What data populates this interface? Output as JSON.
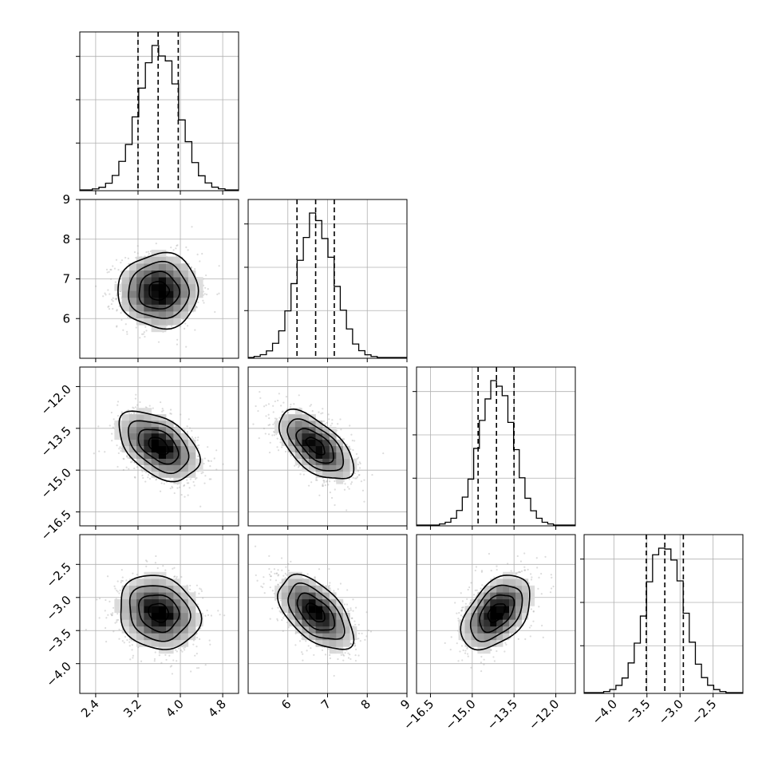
{
  "chart_data": {
    "type": "corner",
    "title": "",
    "parameters": [
      {
        "index": 0,
        "range": [
          2.1,
          5.1
        ],
        "ticks": [
          2.4,
          3.2,
          4.0,
          4.8
        ],
        "tick_labels": [
          "2.4",
          "3.2",
          "4.0",
          "4.8"
        ],
        "mean": 3.59,
        "sd": 0.38,
        "quantiles": [
          3.2,
          3.58,
          3.96
        ]
      },
      {
        "index": 1,
        "range": [
          5.0,
          9.0
        ],
        "ticks": [
          6,
          7,
          8,
          9
        ],
        "tick_labels": [
          "6",
          "7",
          "8",
          "9"
        ],
        "mean": 6.7,
        "sd": 0.47,
        "quantiles": [
          6.23,
          6.7,
          7.17
        ]
      },
      {
        "index": 2,
        "range": [
          -17.0,
          -11.3
        ],
        "ticks": [
          -16.5,
          -15.0,
          -13.5,
          -12.0
        ],
        "tick_labels": [
          "−16.5",
          "−15.0",
          "−13.5",
          "−12.0"
        ],
        "mean": -14.13,
        "sd": 0.62,
        "quantiles": [
          -14.79,
          -14.13,
          -13.5
        ]
      },
      {
        "index": 3,
        "range": [
          -4.45,
          -2.05
        ],
        "ticks": [
          -4.0,
          -3.5,
          -3.0,
          -2.5
        ],
        "tick_labels": [
          "−4.0",
          "−3.5",
          "−3.0",
          "−2.5"
        ],
        "mean": -3.23,
        "sd": 0.28,
        "quantiles": [
          -3.51,
          -3.23,
          -2.95
        ]
      }
    ],
    "pair_correlations": {
      "1-0": 0.0,
      "2-0": -0.45,
      "2-1": -0.6,
      "3-0": -0.15,
      "3-1": -0.55,
      "3-2": 0.45
    },
    "contour_levels_sigma": [
      0.5,
      1.0,
      1.5,
      2.0
    ],
    "histogram_bins": 20,
    "quantile_lines": [
      0.16,
      0.5,
      0.84
    ],
    "grid": true,
    "legend": "none",
    "colors": {
      "lines": "#000000",
      "grid": "#b0b0b0",
      "scatter": "#9a9a9a",
      "density_dark": "#000000",
      "density_light": "#ffffff"
    }
  }
}
